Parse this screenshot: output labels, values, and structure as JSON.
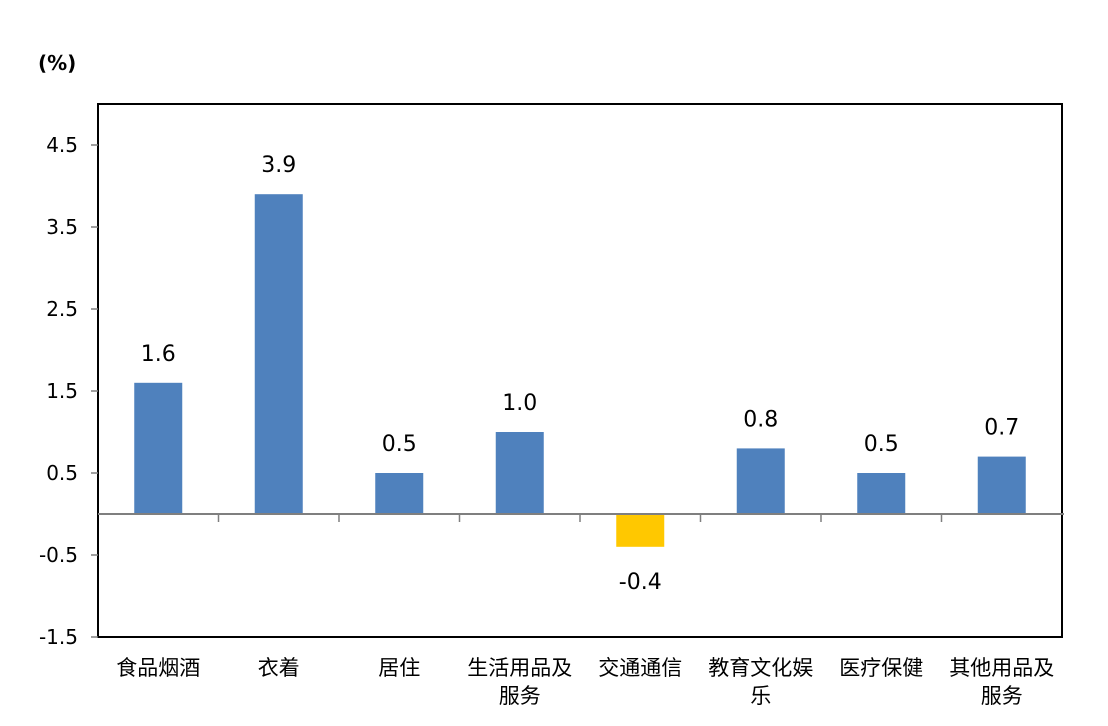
{
  "chart_data": {
    "type": "bar",
    "title": "",
    "xlabel": "",
    "ylabel": "(%)",
    "categories": [
      [
        "食品烟酒"
      ],
      [
        "衣着"
      ],
      [
        "居住"
      ],
      [
        "生活用品及",
        "服务"
      ],
      [
        "交通通信"
      ],
      [
        "教育文化娱",
        "乐"
      ],
      [
        "医疗保健"
      ],
      [
        "其他用品及",
        "服务"
      ]
    ],
    "values": [
      1.6,
      3.9,
      0.5,
      1.0,
      -0.4,
      0.8,
      0.5,
      0.7
    ],
    "value_labels": [
      "1.6",
      "3.9",
      "0.5",
      "1.0",
      "-0.4",
      "0.8",
      "0.5",
      "0.7"
    ],
    "ylim": [
      -1.5,
      5.0
    ],
    "yticks": [
      -1.5,
      -0.5,
      0.5,
      1.5,
      2.5,
      3.5,
      4.5
    ],
    "ytick_labels": [
      "-1.5",
      "-0.5",
      "0.5",
      "1.5",
      "2.5",
      "3.5",
      "4.5"
    ],
    "grid": false,
    "legend": "none",
    "colors": {
      "positive": "#4F81BD",
      "negative": "#FFC800",
      "axis": "#7F7F7F",
      "frame": "#000000"
    }
  }
}
